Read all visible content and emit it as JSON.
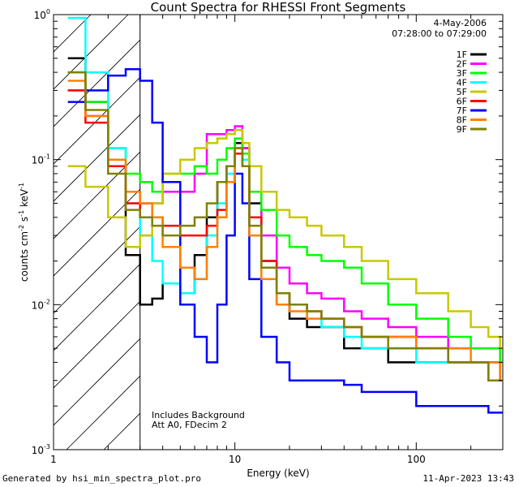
{
  "chart_data": {
    "type": "line",
    "title": "Count Spectra for RHESSI Front Segments",
    "xlabel": "Energy (keV)",
    "ylabel": "counts cm^-2 s^-1 keV^-1",
    "xscale": "log",
    "yscale": "log",
    "xlim": [
      1.0,
      300
    ],
    "ylim": [
      0.001,
      1.0
    ],
    "x_ticks": [
      {
        "v": 1,
        "label": "1"
      },
      {
        "v": 10,
        "label": "10"
      },
      {
        "v": 100,
        "label": "100"
      }
    ],
    "y_ticks": [
      {
        "v": 0.001,
        "base": "10",
        "exp": "-3"
      },
      {
        "v": 0.01,
        "base": "10",
        "exp": "-2"
      },
      {
        "v": 0.1,
        "base": "10",
        "exp": "-1"
      },
      {
        "v": 1.0,
        "base": "10",
        "exp": "0"
      }
    ],
    "date": "4-May-2006",
    "time_range": "07:28:00 to 07:29:00",
    "excluded_region": {
      "from": 1.0,
      "to": 3.0
    },
    "annotations": [
      "Includes Background",
      "Att A0, FDecim 2"
    ],
    "series": [
      {
        "name": "1F",
        "color": "#000000",
        "x": [
          1.2,
          1.5,
          2.0,
          2.5,
          3.0,
          3.5,
          4.0,
          5.0,
          6.0,
          7.0,
          8.0,
          9.0,
          10.0,
          11.0,
          12.0,
          14.0,
          17.0,
          20.0,
          25.0,
          30.0,
          40.0,
          50.0,
          70.0,
          100.0,
          150.0,
          200.0,
          250.0,
          290.0
        ],
        "y": [
          0.5,
          0.25,
          0.09,
          0.022,
          0.01,
          0.011,
          0.014,
          0.012,
          0.022,
          0.04,
          0.07,
          0.09,
          0.13,
          0.12,
          0.05,
          0.02,
          0.01,
          0.008,
          0.007,
          0.007,
          0.005,
          0.005,
          0.004,
          0.004,
          0.004,
          0.004,
          0.004,
          0.003
        ]
      },
      {
        "name": "2F",
        "color": "#ff00ff",
        "x": [
          1.2,
          1.5,
          2.0,
          2.5,
          3.0,
          3.5,
          4.0,
          5.0,
          6.0,
          7.0,
          8.0,
          9.0,
          10.0,
          11.0,
          12.0,
          14.0,
          17.0,
          20.0,
          25.0,
          30.0,
          40.0,
          50.0,
          70.0,
          100.0,
          150.0,
          200.0,
          250.0,
          290.0
        ],
        "y": [
          0.3,
          0.2,
          0.09,
          0.06,
          0.05,
          0.05,
          0.06,
          0.06,
          0.08,
          0.15,
          0.15,
          0.16,
          0.17,
          0.12,
          0.06,
          0.03,
          0.018,
          0.014,
          0.012,
          0.011,
          0.009,
          0.008,
          0.007,
          0.006,
          0.005,
          0.005,
          0.005,
          0.004
        ]
      },
      {
        "name": "3F",
        "color": "#00ff00",
        "x": [
          1.2,
          1.5,
          2.0,
          2.5,
          3.0,
          3.5,
          4.0,
          5.0,
          6.0,
          7.0,
          8.0,
          9.0,
          10.0,
          11.0,
          12.0,
          14.0,
          17.0,
          20.0,
          25.0,
          30.0,
          40.0,
          50.0,
          70.0,
          100.0,
          150.0,
          200.0,
          250.0,
          290.0
        ],
        "y": [
          0.4,
          0.25,
          0.12,
          0.08,
          0.07,
          0.06,
          0.08,
          0.08,
          0.09,
          0.08,
          0.1,
          0.12,
          0.14,
          0.11,
          0.06,
          0.045,
          0.03,
          0.025,
          0.022,
          0.02,
          0.018,
          0.014,
          0.01,
          0.008,
          0.006,
          0.005,
          0.005,
          0.004
        ]
      },
      {
        "name": "4F",
        "color": "#00ffff",
        "x": [
          1.2,
          1.5,
          2.0,
          2.5,
          3.0,
          3.5,
          4.0,
          5.0,
          6.0,
          7.0,
          8.0,
          9.0,
          10.0,
          11.0,
          12.0,
          14.0,
          17.0,
          20.0,
          25.0,
          30.0,
          40.0,
          50.0,
          70.0,
          100.0,
          150.0,
          200.0,
          250.0,
          290.0
        ],
        "y": [
          0.95,
          0.4,
          0.12,
          0.05,
          0.03,
          0.02,
          0.014,
          0.012,
          0.015,
          0.03,
          0.05,
          0.08,
          0.12,
          0.1,
          0.04,
          0.02,
          0.012,
          0.01,
          0.008,
          0.007,
          0.006,
          0.005,
          0.005,
          0.004,
          0.004,
          0.004,
          0.003,
          0.003
        ]
      },
      {
        "name": "5F",
        "color": "#c8c800",
        "x": [
          1.2,
          1.5,
          2.0,
          2.5,
          3.0,
          3.5,
          4.0,
          5.0,
          6.0,
          7.0,
          8.0,
          9.0,
          10.0,
          11.0,
          12.0,
          14.0,
          17.0,
          20.0,
          25.0,
          30.0,
          40.0,
          50.0,
          70.0,
          100.0,
          150.0,
          200.0,
          250.0,
          290.0
        ],
        "y": [
          0.09,
          0.065,
          0.04,
          0.025,
          0.03,
          0.05,
          0.08,
          0.1,
          0.12,
          0.13,
          0.14,
          0.15,
          0.16,
          0.13,
          0.09,
          0.06,
          0.045,
          0.04,
          0.035,
          0.03,
          0.025,
          0.02,
          0.015,
          0.012,
          0.009,
          0.007,
          0.006,
          0.005
        ]
      },
      {
        "name": "6F",
        "color": "#ff0000",
        "x": [
          1.2,
          1.5,
          2.0,
          2.5,
          3.0,
          3.5,
          4.0,
          5.0,
          6.0,
          7.0,
          8.0,
          9.0,
          10.0,
          11.0,
          12.0,
          14.0,
          17.0,
          20.0,
          25.0,
          30.0,
          40.0,
          50.0,
          70.0,
          100.0,
          150.0,
          200.0,
          250.0,
          290.0
        ],
        "y": [
          0.3,
          0.18,
          0.09,
          0.05,
          0.04,
          0.04,
          0.035,
          0.03,
          0.03,
          0.035,
          0.045,
          0.07,
          0.11,
          0.09,
          0.04,
          0.02,
          0.012,
          0.01,
          0.009,
          0.008,
          0.007,
          0.006,
          0.006,
          0.005,
          0.004,
          0.004,
          0.003,
          0.003
        ]
      },
      {
        "name": "7F",
        "color": "#0000ff",
        "x": [
          1.2,
          1.5,
          2.0,
          2.5,
          3.0,
          3.5,
          4.0,
          5.0,
          6.0,
          7.0,
          8.0,
          9.0,
          10.0,
          11.0,
          12.0,
          14.0,
          17.0,
          20.0,
          25.0,
          30.0,
          40.0,
          50.0,
          70.0,
          100.0,
          150.0,
          200.0,
          250.0,
          290.0
        ],
        "y": [
          0.25,
          0.3,
          0.38,
          0.42,
          0.35,
          0.18,
          0.07,
          0.01,
          0.006,
          0.004,
          0.01,
          0.03,
          0.08,
          0.05,
          0.015,
          0.006,
          0.004,
          0.003,
          0.003,
          0.003,
          0.0028,
          0.0025,
          0.0025,
          0.002,
          0.002,
          0.002,
          0.0018,
          0.0018
        ]
      },
      {
        "name": "8F",
        "color": "#ff8000",
        "x": [
          1.2,
          1.5,
          2.0,
          2.5,
          3.0,
          3.5,
          4.0,
          5.0,
          6.0,
          7.0,
          8.0,
          9.0,
          10.0,
          11.0,
          12.0,
          14.0,
          17.0,
          20.0,
          25.0,
          30.0,
          40.0,
          50.0,
          70.0,
          100.0,
          150.0,
          200.0,
          250.0,
          290.0
        ],
        "y": [
          0.35,
          0.2,
          0.1,
          0.06,
          0.05,
          0.04,
          0.025,
          0.018,
          0.015,
          0.025,
          0.04,
          0.07,
          0.12,
          0.09,
          0.03,
          0.015,
          0.01,
          0.009,
          0.008,
          0.008,
          0.007,
          0.006,
          0.006,
          0.005,
          0.005,
          0.004,
          0.004,
          0.003
        ]
      },
      {
        "name": "9F",
        "color": "#808000",
        "x": [
          1.2,
          1.5,
          2.0,
          2.5,
          3.0,
          3.5,
          4.0,
          5.0,
          6.0,
          7.0,
          8.0,
          9.0,
          10.0,
          11.0,
          12.0,
          14.0,
          17.0,
          20.0,
          25.0,
          30.0,
          40.0,
          50.0,
          70.0,
          100.0,
          150.0,
          200.0,
          250.0,
          290.0
        ],
        "y": [
          0.4,
          0.22,
          0.08,
          0.045,
          0.04,
          0.035,
          0.03,
          0.035,
          0.04,
          0.05,
          0.07,
          0.09,
          0.12,
          0.09,
          0.035,
          0.018,
          0.012,
          0.01,
          0.009,
          0.008,
          0.007,
          0.006,
          0.005,
          0.005,
          0.004,
          0.004,
          0.003,
          0.003
        ]
      }
    ]
  },
  "footer": {
    "generated_by": "Generated by hsi_min_spectra_plot.pro",
    "timestamp": "11-Apr-2023 13:43"
  }
}
